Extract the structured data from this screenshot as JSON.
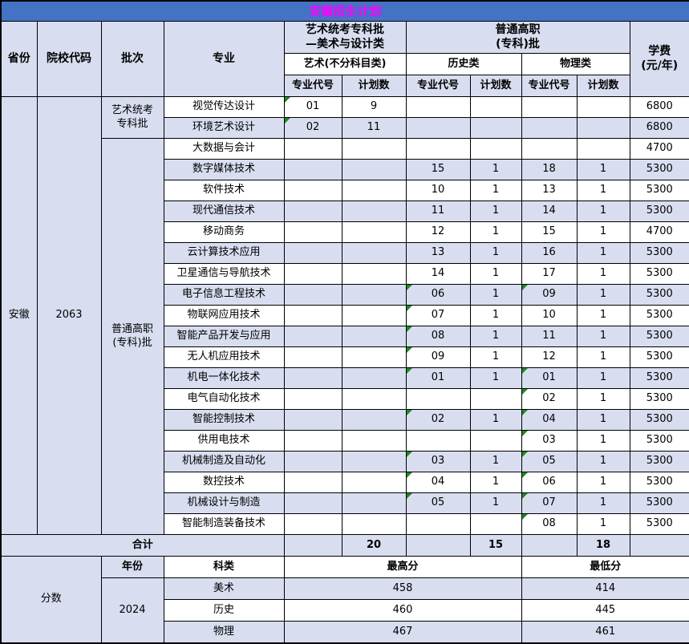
{
  "title": "安徽招生计划",
  "colors": {
    "title_bar": "#4472C4",
    "title_text": "#FF00FF",
    "row_shade": "#D8DEF0",
    "border": "#000000",
    "text_flag_green": "#1E8A1E"
  },
  "header": {
    "province": "省份",
    "college_code": "院校代码",
    "batch": "批次",
    "major": "专业",
    "art_group_line1": "艺术统考专科批",
    "art_group_line2": "—美术与设计类",
    "general_group_line1": "普通高职",
    "general_group_line2": "(专科)批",
    "art_subject": "艺术(不分科目类)",
    "history_group": "历史类",
    "physics_group": "物理类",
    "major_code": "专业代号",
    "plan_count": "计划数",
    "tuition_line1": "学费",
    "tuition_line2": "(元/年)"
  },
  "body": {
    "province": "安徽",
    "college_code": "2063",
    "batch_art_line1": "艺术统考",
    "batch_art_line2": "专科批",
    "batch_general_line1": "普通高职",
    "batch_general_line2": "(专科)批"
  },
  "rows": [
    {
      "major": "视觉传达设计",
      "art_code": "01",
      "art_flag": true,
      "art_count": "9",
      "hist_code": "",
      "hist_flag": false,
      "hist_count": "",
      "phys_code": "",
      "phys_flag": false,
      "phys_count": "",
      "tuition": "6800"
    },
    {
      "major": "环境艺术设计",
      "art_code": "02",
      "art_flag": true,
      "art_count": "11",
      "hist_code": "",
      "hist_flag": false,
      "hist_count": "",
      "phys_code": "",
      "phys_flag": false,
      "phys_count": "",
      "tuition": "6800"
    },
    {
      "major": "大数据与会计",
      "art_code": "",
      "art_flag": false,
      "art_count": "",
      "hist_code": "",
      "hist_flag": false,
      "hist_count": "",
      "phys_code": "",
      "phys_flag": false,
      "phys_count": "",
      "tuition": "4700"
    },
    {
      "major": "数字媒体技术",
      "art_code": "",
      "art_flag": false,
      "art_count": "",
      "hist_code": "15",
      "hist_flag": false,
      "hist_count": "1",
      "phys_code": "18",
      "phys_flag": false,
      "phys_count": "1",
      "tuition": "5300"
    },
    {
      "major": "软件技术",
      "art_code": "",
      "art_flag": false,
      "art_count": "",
      "hist_code": "10",
      "hist_flag": false,
      "hist_count": "1",
      "phys_code": "13",
      "phys_flag": false,
      "phys_count": "1",
      "tuition": "5300"
    },
    {
      "major": "现代通信技术",
      "art_code": "",
      "art_flag": false,
      "art_count": "",
      "hist_code": "11",
      "hist_flag": false,
      "hist_count": "1",
      "phys_code": "14",
      "phys_flag": false,
      "phys_count": "1",
      "tuition": "5300"
    },
    {
      "major": "移动商务",
      "art_code": "",
      "art_flag": false,
      "art_count": "",
      "hist_code": "12",
      "hist_flag": false,
      "hist_count": "1",
      "phys_code": "15",
      "phys_flag": false,
      "phys_count": "1",
      "tuition": "4700"
    },
    {
      "major": "云计算技术应用",
      "art_code": "",
      "art_flag": false,
      "art_count": "",
      "hist_code": "13",
      "hist_flag": false,
      "hist_count": "1",
      "phys_code": "16",
      "phys_flag": false,
      "phys_count": "1",
      "tuition": "5300"
    },
    {
      "major": "卫星通信与导航技术",
      "art_code": "",
      "art_flag": false,
      "art_count": "",
      "hist_code": "14",
      "hist_flag": false,
      "hist_count": "1",
      "phys_code": "17",
      "phys_flag": false,
      "phys_count": "1",
      "tuition": "5300"
    },
    {
      "major": "电子信息工程技术",
      "art_code": "",
      "art_flag": false,
      "art_count": "",
      "hist_code": "06",
      "hist_flag": true,
      "hist_count": "1",
      "phys_code": "09",
      "phys_flag": true,
      "phys_count": "1",
      "tuition": "5300"
    },
    {
      "major": "物联网应用技术",
      "art_code": "",
      "art_flag": false,
      "art_count": "",
      "hist_code": "07",
      "hist_flag": true,
      "hist_count": "1",
      "phys_code": "10",
      "phys_flag": false,
      "phys_count": "1",
      "tuition": "5300"
    },
    {
      "major": "智能产品开发与应用",
      "art_code": "",
      "art_flag": false,
      "art_count": "",
      "hist_code": "08",
      "hist_flag": true,
      "hist_count": "1",
      "phys_code": "11",
      "phys_flag": false,
      "phys_count": "1",
      "tuition": "5300"
    },
    {
      "major": "无人机应用技术",
      "art_code": "",
      "art_flag": false,
      "art_count": "",
      "hist_code": "09",
      "hist_flag": true,
      "hist_count": "1",
      "phys_code": "12",
      "phys_flag": false,
      "phys_count": "1",
      "tuition": "5300"
    },
    {
      "major": "机电一体化技术",
      "art_code": "",
      "art_flag": false,
      "art_count": "",
      "hist_code": "01",
      "hist_flag": true,
      "hist_count": "1",
      "phys_code": "01",
      "phys_flag": true,
      "phys_count": "1",
      "tuition": "5300"
    },
    {
      "major": "电气自动化技术",
      "art_code": "",
      "art_flag": false,
      "art_count": "",
      "hist_code": "",
      "hist_flag": false,
      "hist_count": "",
      "phys_code": "02",
      "phys_flag": true,
      "phys_count": "1",
      "tuition": "5300"
    },
    {
      "major": "智能控制技术",
      "art_code": "",
      "art_flag": false,
      "art_count": "",
      "hist_code": "02",
      "hist_flag": true,
      "hist_count": "1",
      "phys_code": "04",
      "phys_flag": true,
      "phys_count": "1",
      "tuition": "5300"
    },
    {
      "major": "供用电技术",
      "art_code": "",
      "art_flag": false,
      "art_count": "",
      "hist_code": "",
      "hist_flag": false,
      "hist_count": "",
      "phys_code": "03",
      "phys_flag": true,
      "phys_count": "1",
      "tuition": "5300"
    },
    {
      "major": "机械制造及自动化",
      "art_code": "",
      "art_flag": false,
      "art_count": "",
      "hist_code": "03",
      "hist_flag": true,
      "hist_count": "1",
      "phys_code": "05",
      "phys_flag": true,
      "phys_count": "1",
      "tuition": "5300"
    },
    {
      "major": "数控技术",
      "art_code": "",
      "art_flag": false,
      "art_count": "",
      "hist_code": "04",
      "hist_flag": true,
      "hist_count": "1",
      "phys_code": "06",
      "phys_flag": true,
      "phys_count": "1",
      "tuition": "5300"
    },
    {
      "major": "机械设计与制造",
      "art_code": "",
      "art_flag": false,
      "art_count": "",
      "hist_code": "05",
      "hist_flag": true,
      "hist_count": "1",
      "phys_code": "07",
      "phys_flag": true,
      "phys_count": "1",
      "tuition": "5300"
    },
    {
      "major": "智能制造装备技术",
      "art_code": "",
      "art_flag": false,
      "art_count": "",
      "hist_code": "",
      "hist_flag": false,
      "hist_count": "",
      "phys_code": "08",
      "phys_flag": true,
      "phys_count": "1",
      "tuition": "5300"
    }
  ],
  "total": {
    "label": "合计",
    "art_code": "",
    "art_count": "20",
    "hist_code": "",
    "hist_count": "15",
    "phys_code": "",
    "phys_count": "18",
    "tuition": ""
  },
  "score": {
    "label": "分数",
    "year_label": "年份",
    "year": "2024",
    "subject_label": "科类",
    "max_label": "最高分",
    "min_label": "最低分",
    "rows": [
      {
        "subject": "美术",
        "max": "458",
        "min": "414"
      },
      {
        "subject": "历史",
        "max": "460",
        "min": "445"
      },
      {
        "subject": "物理",
        "max": "467",
        "min": "461"
      }
    ]
  }
}
